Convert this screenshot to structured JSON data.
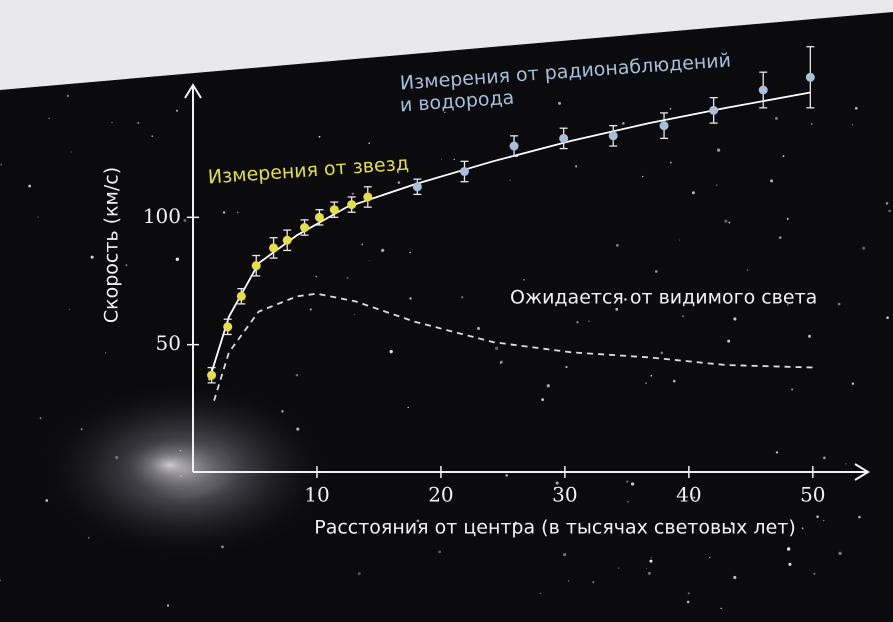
{
  "chart_data": {
    "type": "scatter",
    "xlabel": "Расстояния от центра (в тысячах световых лет)",
    "ylabel": "Скорость (км/с)",
    "xlim": [
      0,
      53
    ],
    "ylim": [
      0,
      150
    ],
    "xticks": [
      10,
      20,
      30,
      40,
      50
    ],
    "yticks": [
      50,
      100
    ],
    "series": [
      {
        "name": "Измерения от звезд",
        "color": "#e6de45",
        "x": [
          1.5,
          2.8,
          3.9,
          5.1,
          6.5,
          7.6,
          9.0,
          10.2,
          11.4,
          12.8,
          14.1
        ],
        "values": [
          38,
          57,
          69,
          81,
          88,
          91,
          96,
          100,
          103,
          105,
          108
        ],
        "errors": [
          3,
          3,
          3,
          4,
          4,
          4,
          3,
          3,
          3,
          3,
          4
        ]
      },
      {
        "name_lines": [
          "Измерения от радионаблюдений",
          "и водорода"
        ],
        "color": "#a7bfdc",
        "x": [
          18.1,
          21.9,
          25.9,
          29.9,
          33.9,
          38.0,
          42.0,
          46.0,
          49.8
        ],
        "values": [
          112,
          118,
          128,
          131,
          132,
          136,
          142,
          150,
          155
        ],
        "errors": [
          3,
          4,
          4,
          4,
          4,
          5,
          5,
          7,
          12
        ]
      }
    ],
    "fit_curve": {
      "color": "#ffffff",
      "x": [
        1.3,
        2.9,
        5.3,
        8.4,
        12.4,
        17.9,
        24.2,
        30.5,
        36.8,
        43.0,
        49.8
      ],
      "values": [
        36,
        61,
        82,
        93,
        104,
        113,
        122,
        130,
        137,
        143,
        149
      ]
    },
    "expected_curve": {
      "label": "Ожидается от видимого света",
      "color": "#dddddd",
      "dashed": true,
      "x": [
        1.7,
        2.9,
        5.3,
        8.4,
        10.0,
        13.1,
        17.9,
        24.2,
        30.5,
        36.8,
        43.0,
        50.2
      ],
      "values": [
        28,
        47,
        63,
        69,
        70,
        67,
        59,
        51,
        47,
        45,
        42,
        41
      ]
    }
  }
}
